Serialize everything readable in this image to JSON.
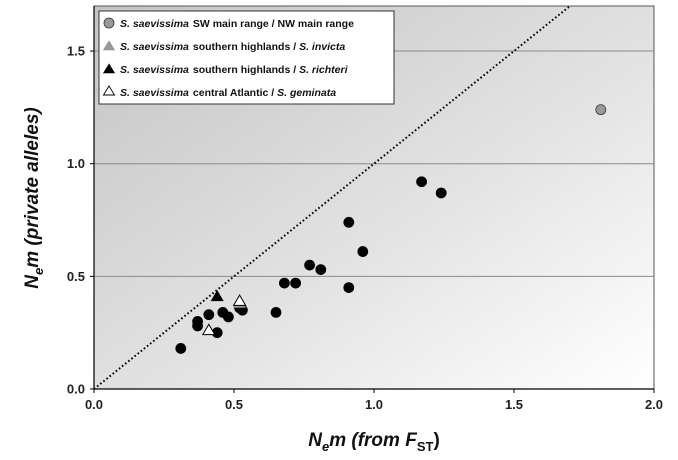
{
  "chart_data": {
    "type": "scatter",
    "xlim": [
      0.0,
      2.0
    ],
    "ylim": [
      0.0,
      1.7
    ],
    "x_ticks": [
      "0.0",
      "0.5",
      "1.0",
      "1.5",
      "2.0"
    ],
    "y_ticks": [
      "0.0",
      "0.5",
      "1.0",
      "1.5"
    ],
    "x_tick_values": [
      0.0,
      0.5,
      1.0,
      1.5,
      2.0
    ],
    "y_tick_values": [
      0.0,
      0.5,
      1.0,
      1.5
    ],
    "grid": "horizontal",
    "background": "gradient-gray",
    "xlabel": {
      "base": "N",
      "sub1": "e",
      "mid": "m (from ",
      "fst": "F",
      "sub2": "ST",
      "end": ")"
    },
    "ylabel": {
      "base": "N",
      "sub1": "e",
      "mid": "m (private alleles)"
    },
    "reference_line": {
      "style": "dotted",
      "slope": 1,
      "description": "y = x"
    },
    "legend_position": "top-left",
    "legend": [
      {
        "species": "S. saevissima",
        "middle": "SW main range / NW main range",
        "other": "",
        "marker": "circle",
        "color": "#999999"
      },
      {
        "species": "S. saevissima",
        "middle": "southern highlands / ",
        "other": "S. invicta",
        "marker": "triangle",
        "color": "#999999"
      },
      {
        "species": "S. saevissima",
        "middle": "southern highlands / ",
        "other": "S. richteri",
        "marker": "triangle",
        "color": "#000000"
      },
      {
        "species": "S. saevissima",
        "middle": "central Atlantic / ",
        "other": "S. geminata",
        "marker": "triangle",
        "color": "#ffffff"
      }
    ],
    "series": [
      {
        "marker": "circle",
        "color": "#000000",
        "points": [
          [
            0.31,
            0.18
          ],
          [
            0.37,
            0.28
          ],
          [
            0.37,
            0.3
          ],
          [
            0.41,
            0.33
          ],
          [
            0.44,
            0.25
          ],
          [
            0.46,
            0.34
          ],
          [
            0.48,
            0.32
          ],
          [
            0.52,
            0.36
          ],
          [
            0.53,
            0.35
          ],
          [
            0.65,
            0.34
          ],
          [
            0.68,
            0.47
          ],
          [
            0.72,
            0.47
          ],
          [
            0.77,
            0.55
          ],
          [
            0.81,
            0.53
          ],
          [
            0.91,
            0.74
          ],
          [
            0.91,
            0.45
          ],
          [
            0.96,
            0.61
          ],
          [
            1.17,
            0.92
          ],
          [
            1.24,
            0.87
          ]
        ]
      },
      {
        "marker": "circle",
        "color": "#999999",
        "points": [
          [
            1.81,
            1.24
          ]
        ]
      },
      {
        "marker": "triangle",
        "color": "#999999",
        "points": [
          [
            0.52,
            0.38
          ]
        ]
      },
      {
        "marker": "triangle",
        "color": "#000000",
        "points": [
          [
            0.44,
            0.41
          ]
        ]
      },
      {
        "marker": "triangle",
        "color": "#ffffff",
        "points": [
          [
            0.41,
            0.26
          ],
          [
            0.52,
            0.39
          ]
        ]
      }
    ]
  }
}
